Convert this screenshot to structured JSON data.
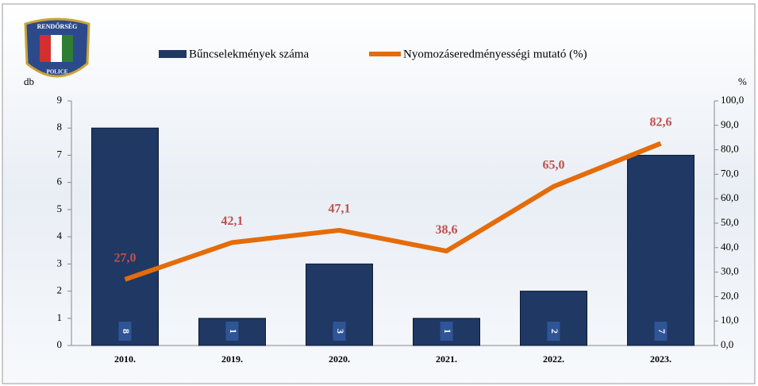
{
  "logo": {
    "top": "RENDŐRSÉG",
    "bottom": "POLICE"
  },
  "chart_data": {
    "type": "bar",
    "y_label": "db",
    "y2_label": "%",
    "categories": [
      "2010.",
      "2019.",
      "2020.",
      "2021.",
      "2022.",
      "2023."
    ],
    "series": [
      {
        "name": "Bűncselekmények száma",
        "type": "bar",
        "color": "#1f3864",
        "values": [
          8,
          1,
          3,
          1,
          2,
          7
        ]
      },
      {
        "name": "Nyomozáseredményességi mutató (%)",
        "type": "line",
        "axis": "y2",
        "color": "#e46c0a",
        "values": [
          27.0,
          42.1,
          47.1,
          38.6,
          65.0,
          82.6
        ],
        "value_labels": [
          "27,0",
          "42,1",
          "47,1",
          "38,6",
          "65,0",
          "82,6"
        ]
      }
    ],
    "ylim": [
      0,
      9
    ],
    "yticks": [
      0,
      1,
      2,
      3,
      4,
      5,
      6,
      7,
      8,
      9
    ],
    "y2lim": [
      0,
      100
    ],
    "y2ticks": [
      {
        "value": 0,
        "label": "0,0"
      },
      {
        "value": 10,
        "label": "10,0"
      },
      {
        "value": 20,
        "label": "20,0"
      },
      {
        "value": 30,
        "label": "30,0"
      },
      {
        "value": 40,
        "label": "40,0"
      },
      {
        "value": 50,
        "label": "50,0"
      },
      {
        "value": 60,
        "label": "60,0"
      },
      {
        "value": 70,
        "label": "70,0"
      },
      {
        "value": 80,
        "label": "80,0"
      },
      {
        "value": 90,
        "label": "90,0"
      },
      {
        "value": 100,
        "label": "100,0"
      }
    ],
    "legend": "top"
  }
}
